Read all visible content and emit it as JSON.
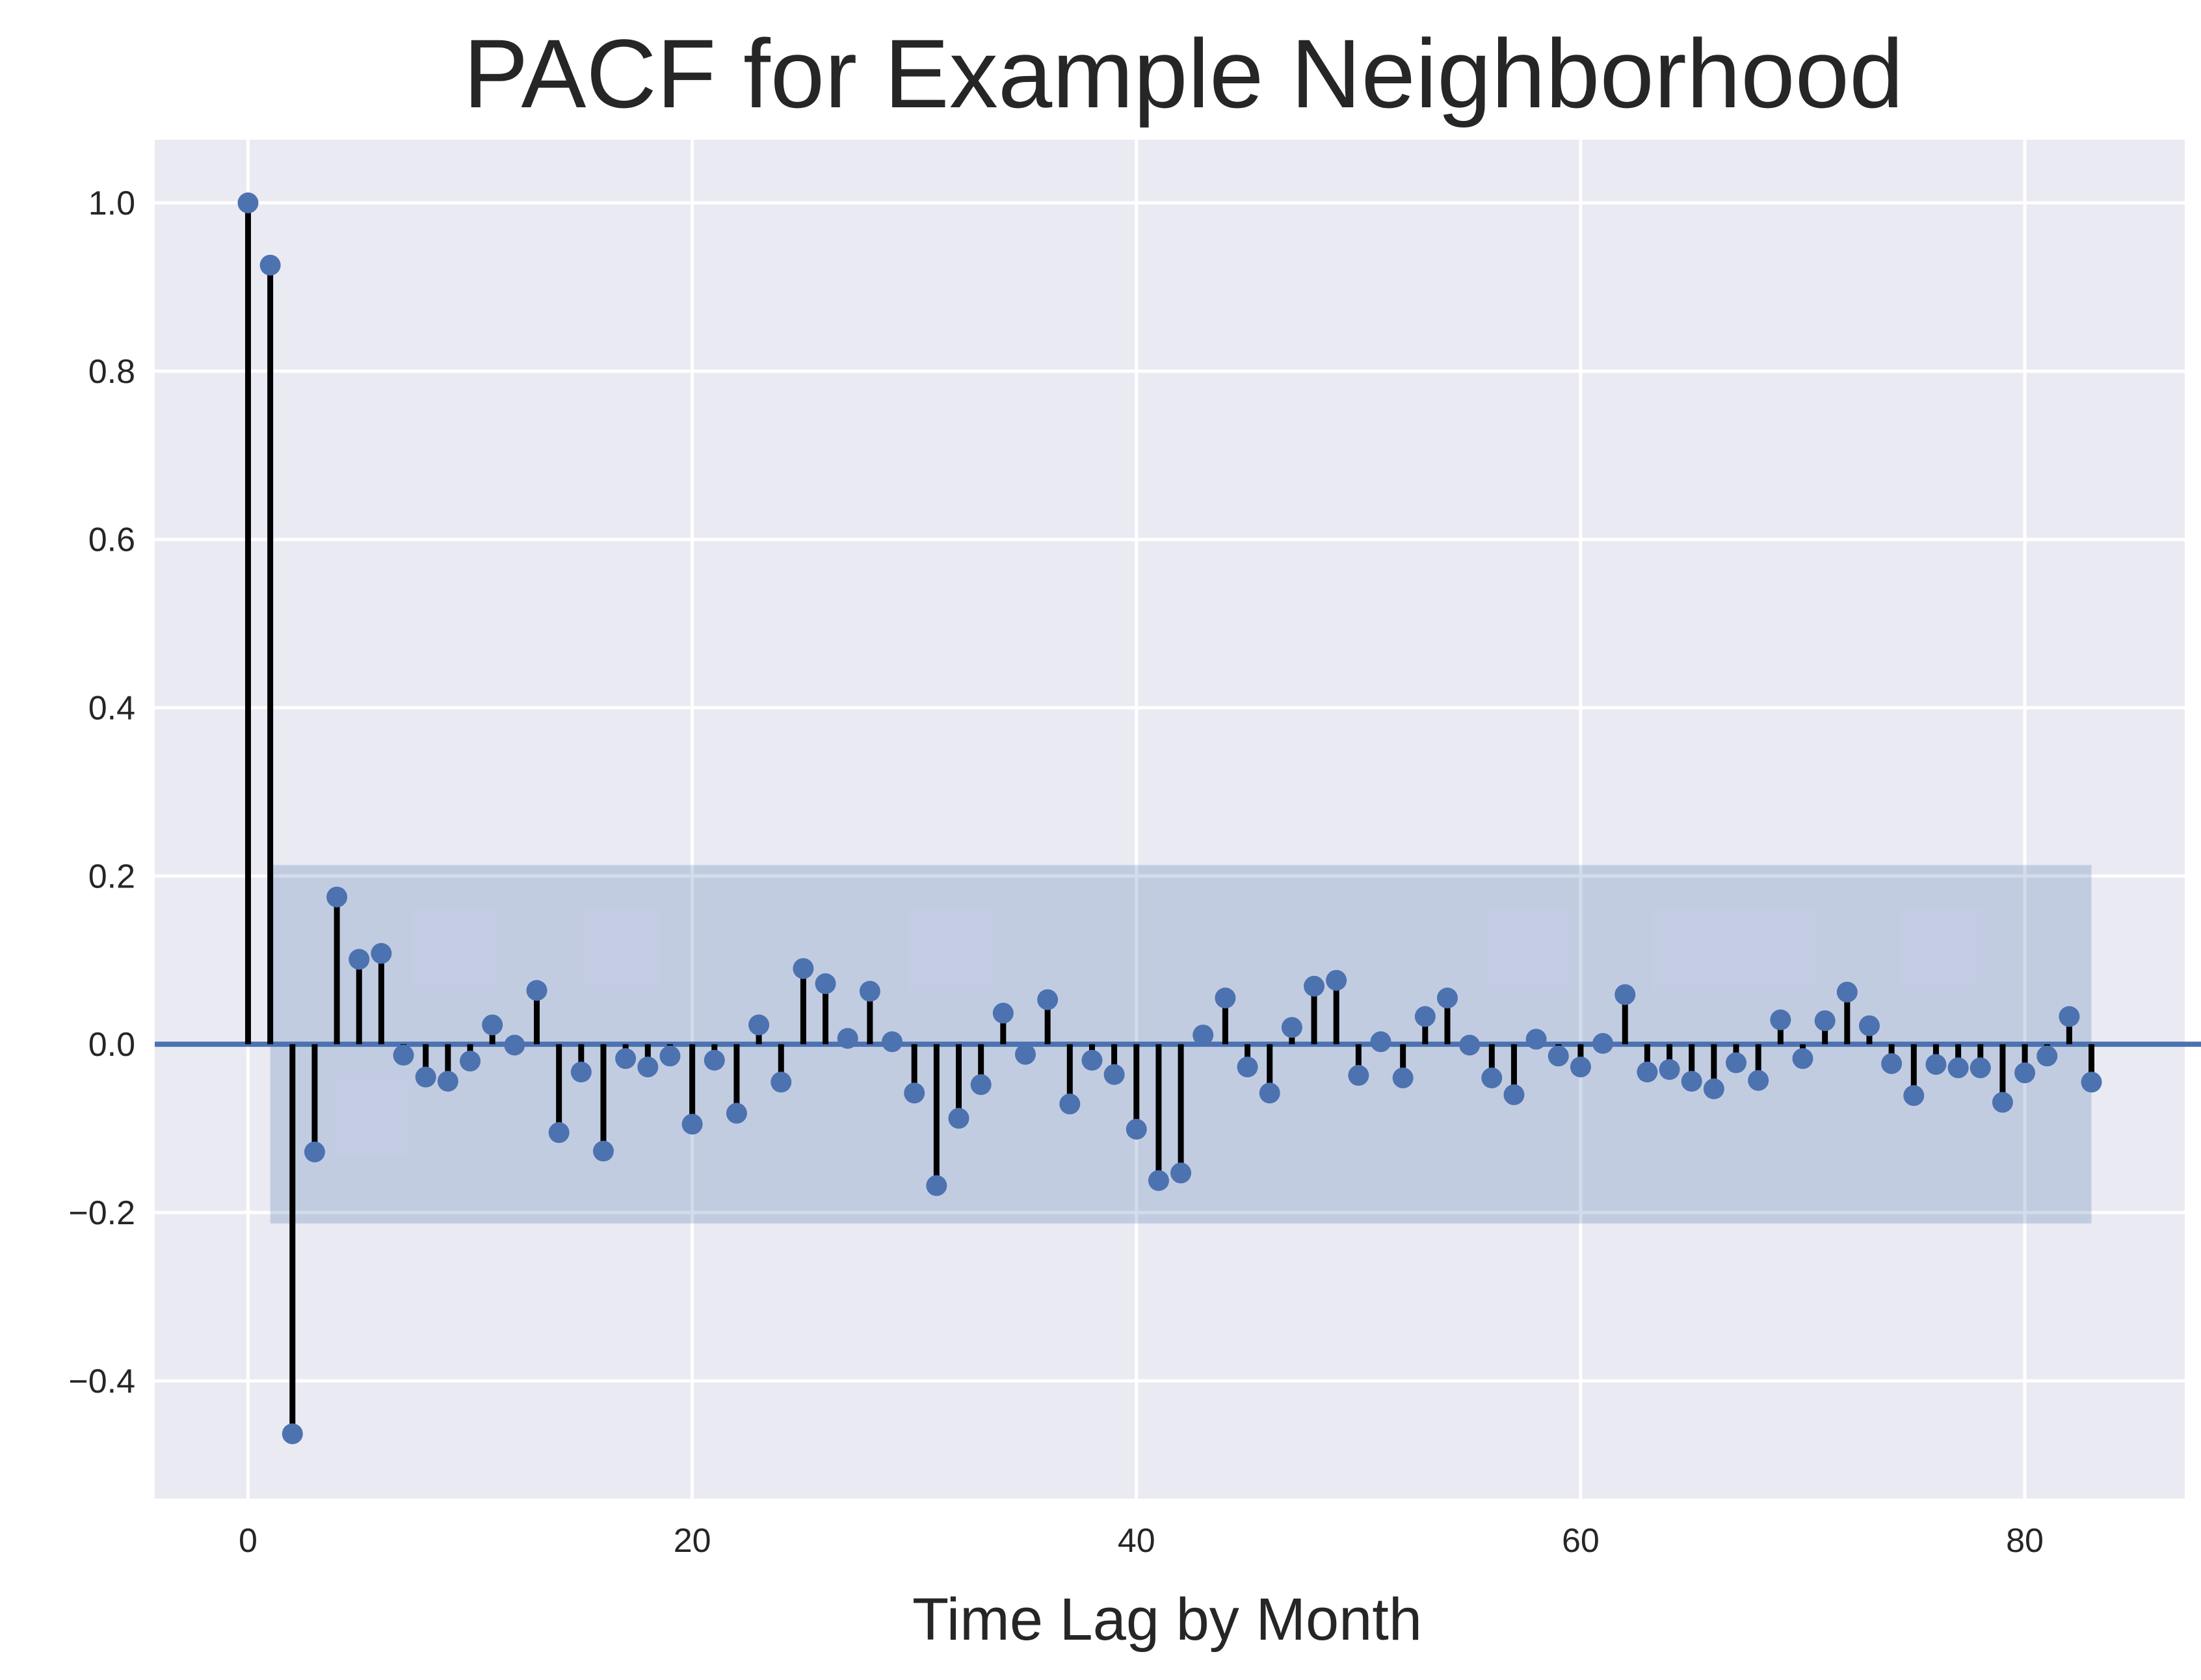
{
  "chart_data": {
    "type": "stem",
    "title": "PACF for Example Neighborhood",
    "xlabel": "Time Lag by Month",
    "ylabel": "",
    "xlim": [
      -4.2,
      87.2
    ],
    "ylim": [
      -0.54,
      1.075
    ],
    "x_ticks": [
      0,
      20,
      40,
      60,
      80
    ],
    "x_tick_labels": [
      "0",
      "20",
      "40",
      "60",
      "80"
    ],
    "y_ticks": [
      -0.4,
      -0.2,
      0.0,
      0.2,
      0.4,
      0.6,
      0.8,
      1.0
    ],
    "y_tick_labels": [
      "−0.4",
      "−0.2",
      "0.0",
      "0.2",
      "0.4",
      "0.6",
      "0.8",
      "1.0"
    ],
    "grid": true,
    "confidence_band": {
      "x_range": [
        1,
        83
      ],
      "upper": 0.213,
      "lower": -0.213
    },
    "colors": {
      "background": "#eaeaf2",
      "grid": "#ffffff",
      "marker": "#4c72b0",
      "stem": "#000000",
      "baseline": "#4c72b0",
      "band": "#4c72b0"
    },
    "lags": [
      0,
      1,
      2,
      3,
      4,
      5,
      6,
      7,
      8,
      9,
      10,
      11,
      12,
      13,
      14,
      15,
      16,
      17,
      18,
      19,
      20,
      21,
      22,
      23,
      24,
      25,
      26,
      27,
      28,
      29,
      30,
      31,
      32,
      33,
      34,
      35,
      36,
      37,
      38,
      39,
      40,
      41,
      42,
      43,
      44,
      45,
      46,
      47,
      48,
      49,
      50,
      51,
      52,
      53,
      54,
      55,
      56,
      57,
      58,
      59,
      60,
      61,
      62,
      63,
      64,
      65,
      66,
      67,
      68,
      69,
      70,
      71,
      72,
      73,
      74,
      75,
      76,
      77,
      78,
      79,
      80,
      81,
      82,
      83
    ],
    "values": [
      1.0,
      0.926,
      -0.463,
      -0.128,
      0.175,
      0.101,
      0.108,
      -0.013,
      -0.039,
      -0.044,
      -0.02,
      0.023,
      -0.001,
      0.064,
      -0.105,
      -0.033,
      -0.127,
      -0.017,
      -0.027,
      -0.014,
      -0.095,
      -0.019,
      -0.082,
      0.023,
      -0.045,
      0.09,
      0.072,
      0.007,
      0.063,
      0.003,
      -0.058,
      -0.168,
      -0.088,
      -0.048,
      0.037,
      -0.012,
      0.053,
      -0.071,
      -0.019,
      -0.036,
      -0.101,
      -0.162,
      -0.153,
      0.011,
      0.055,
      -0.027,
      -0.058,
      0.02,
      0.069,
      0.076,
      -0.037,
      0.003,
      -0.04,
      0.033,
      0.055,
      -0.001,
      -0.04,
      -0.06,
      0.006,
      -0.014,
      -0.027,
      0.001,
      0.059,
      -0.033,
      -0.03,
      -0.044,
      -0.053,
      -0.022,
      -0.043,
      0.029,
      -0.017,
      0.028,
      0.062,
      0.022,
      -0.023,
      -0.061,
      -0.024,
      -0.028,
      -0.028,
      -0.069,
      -0.034,
      -0.014,
      0.033,
      -0.045
    ]
  }
}
